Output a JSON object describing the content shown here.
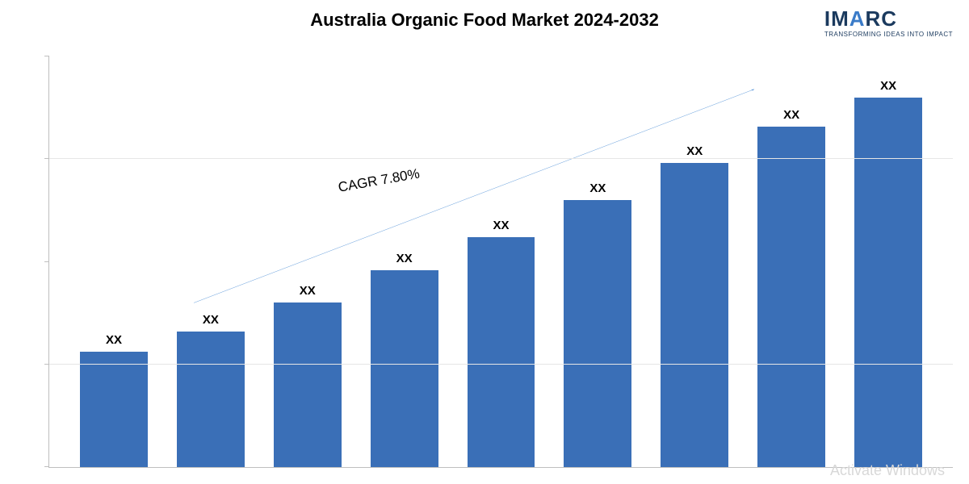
{
  "title": {
    "text": "Australia Organic Food Market 2024-2032",
    "fontsize": 22,
    "color": "#000000"
  },
  "logo": {
    "main_prefix": "IM",
    "main_accent": "A",
    "main_suffix": "RC",
    "tagline": "TRANSFORMING IDEAS INTO IMPACT",
    "main_fontsize": 26,
    "prefix_color": "#1b3a5e",
    "accent_color": "#3a7bc8"
  },
  "chart": {
    "type": "bar",
    "background_color": "#ffffff",
    "axis_color": "#bfbfbf",
    "grid_color": "#e6e6e6",
    "ylim": [
      0,
      100
    ],
    "gridlines_pct": [
      25,
      75
    ],
    "yticks_pct": [
      0,
      25,
      50,
      75,
      100
    ],
    "bar_color": "#3a6fb7",
    "bar_width_ratio": 0.7,
    "value_label_text": "XX",
    "value_label_fontsize": 15,
    "value_label_color": "#000000",
    "bars": [
      {
        "label": "XX",
        "value_pct": 28
      },
      {
        "label": "XX",
        "value_pct": 33
      },
      {
        "label": "XX",
        "value_pct": 40
      },
      {
        "label": "XX",
        "value_pct": 48
      },
      {
        "label": "XX",
        "value_pct": 56
      },
      {
        "label": "XX",
        "value_pct": 65
      },
      {
        "label": "XX",
        "value_pct": 74
      },
      {
        "label": "XX",
        "value_pct": 83
      },
      {
        "label": "XX",
        "value_pct": 90
      }
    ],
    "trend_arrow": {
      "x1_pct": 16,
      "y1_pct": 60,
      "x2_pct": 78,
      "y2_pct": 8,
      "stroke": "#4f8fd6",
      "stroke_width": 2
    },
    "cagr_label": {
      "text": "CAGR 7.80%",
      "fontsize": 17,
      "left_pct": 32,
      "top_pct": 30,
      "rotation_deg": -10
    }
  },
  "watermark": {
    "text": "Activate Windows",
    "color": "#d8d8d8"
  }
}
